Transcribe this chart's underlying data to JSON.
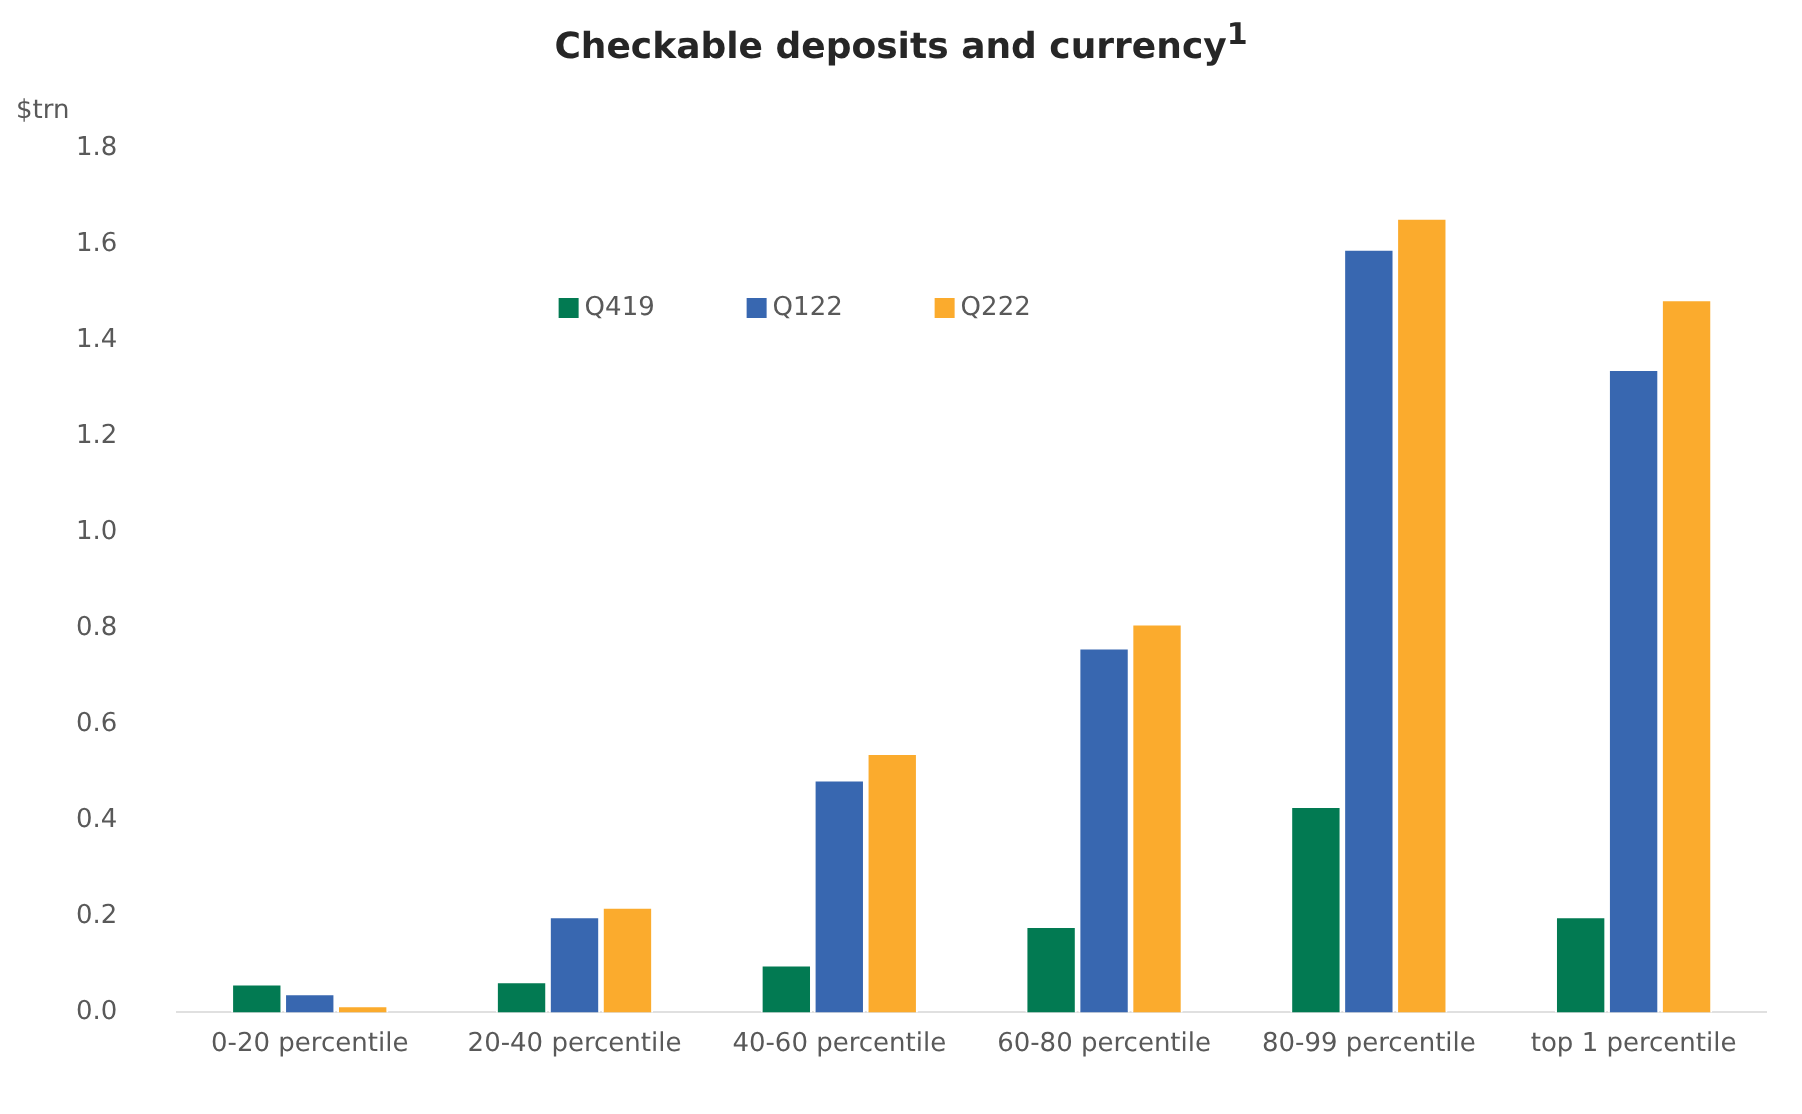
{
  "chart_data": {
    "type": "bar",
    "title": "Checkable deposits and currency$^{1}$",
    "ylabel": "$trn",
    "categories": [
      "0-20 percentile",
      "20-40 percentile",
      "40-60 percentile",
      "60-80 percentile",
      "80-99 percentile",
      "top 1 percentile"
    ],
    "series": [
      {
        "name": "Q419",
        "color": "#027a52",
        "values": [
          0.06,
          0.065,
          0.1,
          0.18,
          0.43,
          0.2
        ]
      },
      {
        "name": "Q122",
        "color": "#3867b0",
        "values": [
          0.04,
          0.2,
          0.485,
          0.76,
          1.59,
          1.34
        ]
      },
      {
        "name": "Q222",
        "color": "#fbab2d",
        "values": [
          0.015,
          0.22,
          0.54,
          0.81,
          1.655,
          1.485
        ]
      }
    ],
    "ylim": [
      0,
      1.8
    ],
    "yticks": [
      {
        "value": 0,
        "label": "0.0"
      },
      {
        "value": 0.2,
        "label": "0.2"
      },
      {
        "value": 0.4,
        "label": "0.4"
      },
      {
        "value": 0.6,
        "label": "0.6"
      },
      {
        "value": 0.8,
        "label": "0.8"
      },
      {
        "value": 1,
        "label": "1.0"
      },
      {
        "value": 1.2,
        "label": "1.2"
      },
      {
        "value": 1.4,
        "label": "1.4"
      },
      {
        "value": 1.6,
        "label": "1.6"
      },
      {
        "value": 1.8,
        "label": "1.8"
      }
    ],
    "grid": false,
    "legend": "top"
  }
}
